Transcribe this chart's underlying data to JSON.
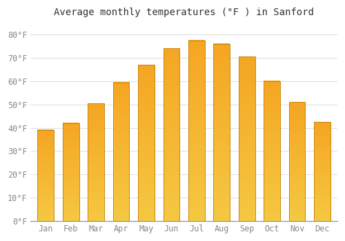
{
  "title": "Average monthly temperatures (°F ) in Sanford",
  "months": [
    "Jan",
    "Feb",
    "Mar",
    "Apr",
    "May",
    "Jun",
    "Jul",
    "Aug",
    "Sep",
    "Oct",
    "Nov",
    "Dec"
  ],
  "values": [
    39,
    42,
    50.5,
    59.5,
    67,
    74,
    77.5,
    76,
    70.5,
    60,
    51,
    42.5
  ],
  "bar_color_top": "#F5A623",
  "bar_color_bottom": "#F5C842",
  "bar_edge_color": "#C8860A",
  "background_color": "#FFFFFF",
  "plot_bg_color": "#FFFFFF",
  "grid_color": "#E0E0E0",
  "yticks": [
    0,
    10,
    20,
    30,
    40,
    50,
    60,
    70,
    80
  ],
  "ylim": [
    0,
    85
  ],
  "title_fontsize": 10,
  "tick_fontsize": 8.5,
  "font_family": "monospace"
}
